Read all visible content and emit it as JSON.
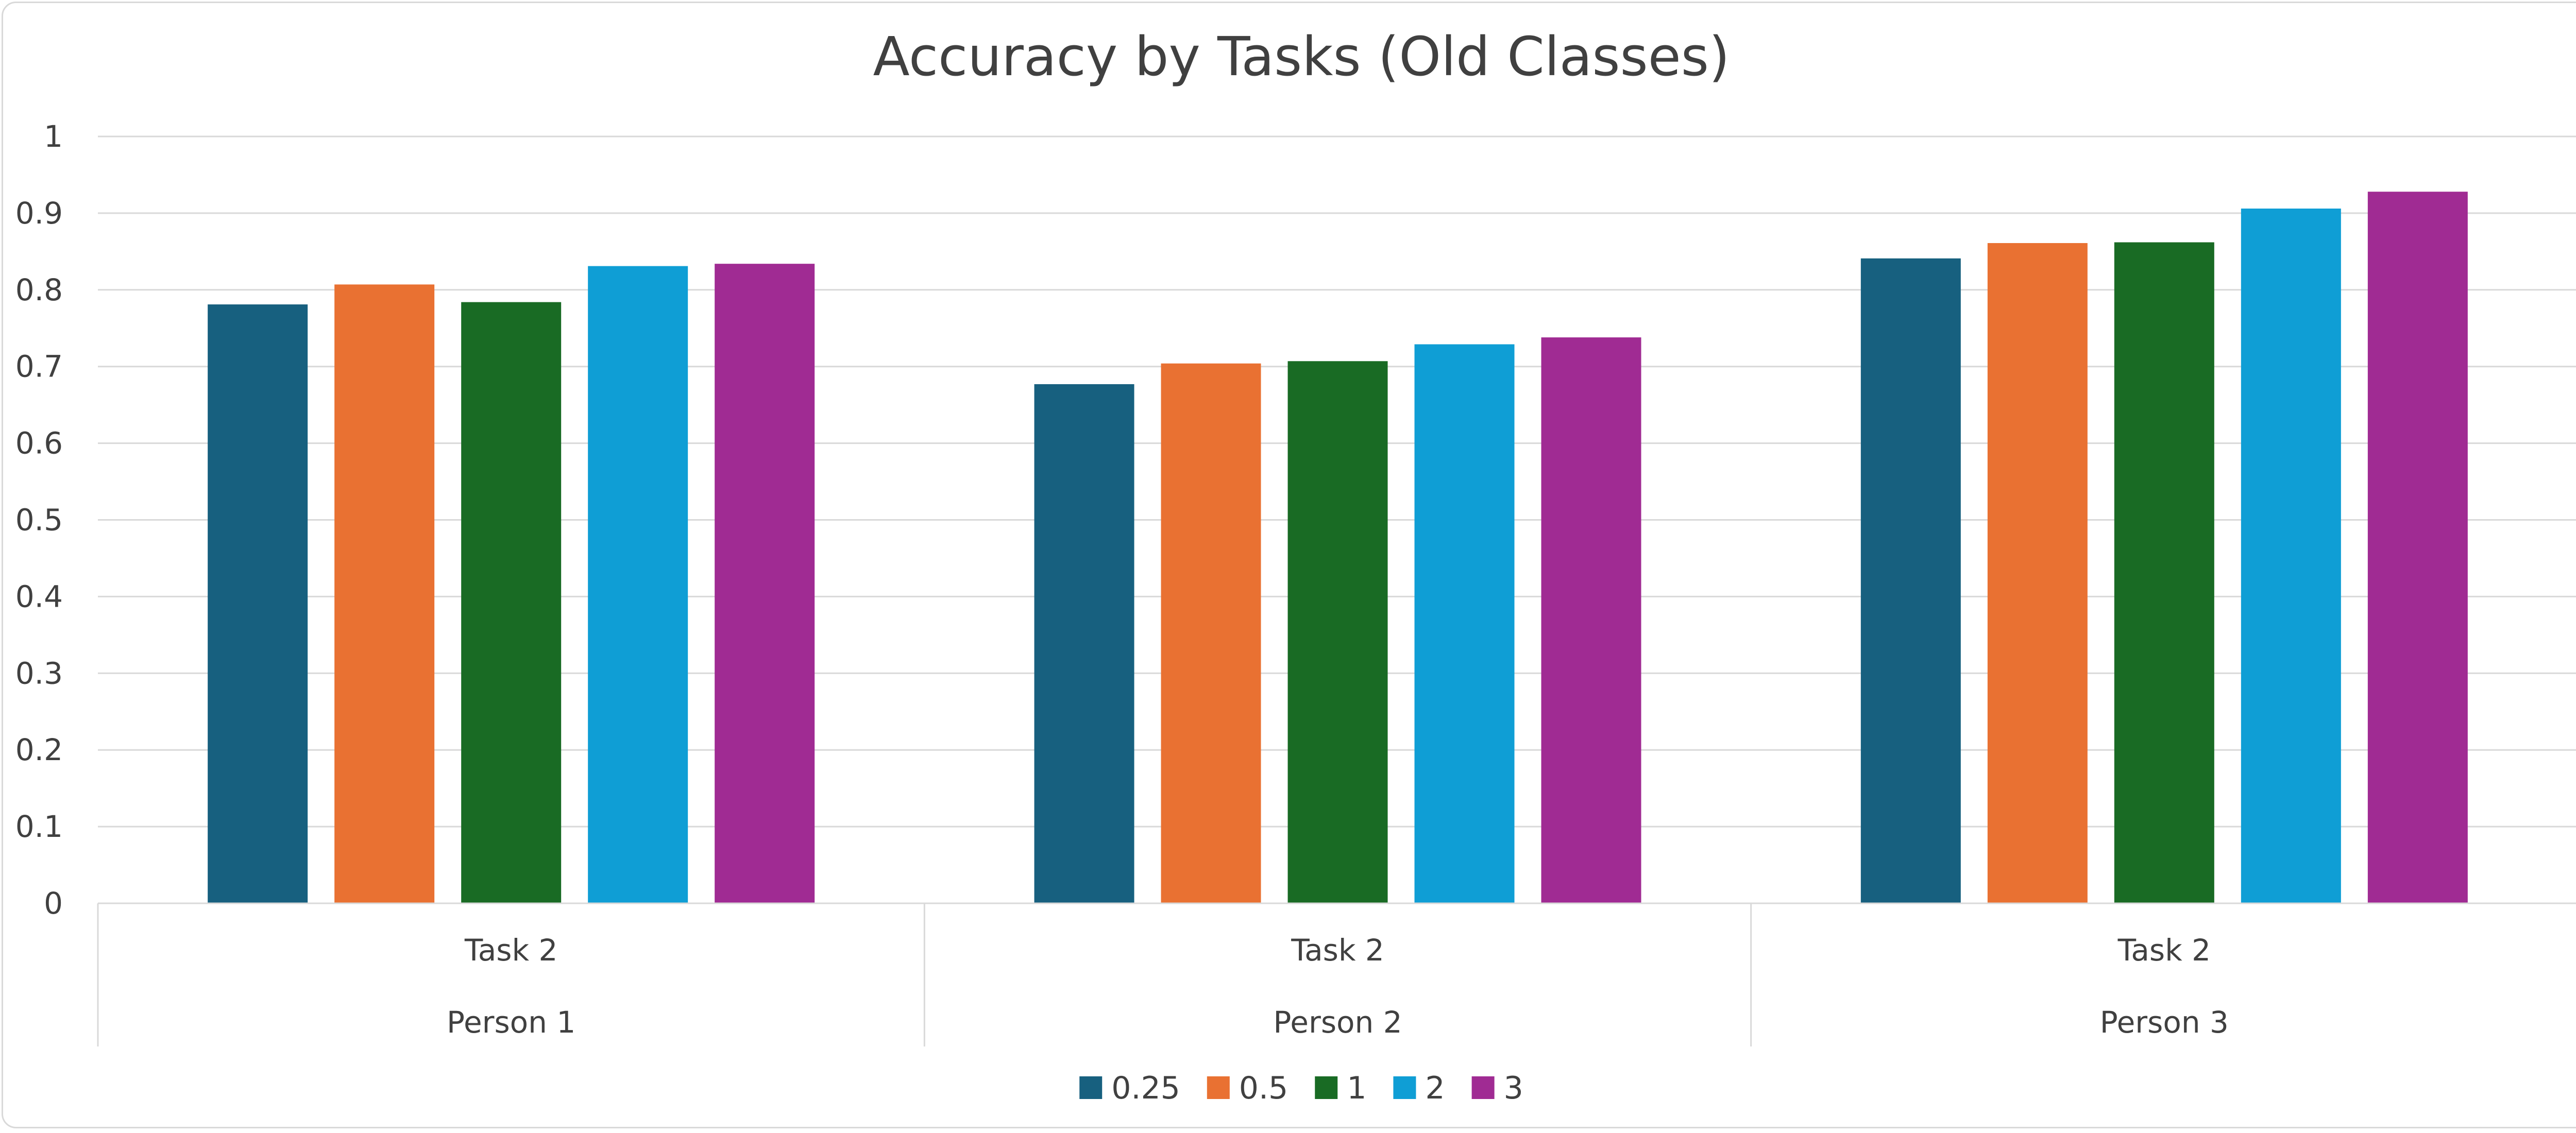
{
  "chart_data": {
    "type": "bar",
    "title": "Accuracy by Tasks (Old Classes)",
    "xlabel": "",
    "ylabel": "",
    "ylim": [
      0,
      1
    ],
    "yticks": [
      "0",
      "0.1",
      "0.2",
      "0.3",
      "0.4",
      "0.5",
      "0.6",
      "0.7",
      "0.8",
      "0.9",
      "1"
    ],
    "grid": true,
    "legend_position": "bottom",
    "categories": [
      {
        "task": "Task 2",
        "group": "Person 1"
      },
      {
        "task": "Task 2",
        "group": "Person 2"
      },
      {
        "task": "Task 2",
        "group": "Person 3"
      }
    ],
    "series": [
      {
        "name": "0.25",
        "color": "#17607f",
        "values": [
          0.781,
          0.677,
          0.841
        ]
      },
      {
        "name": "0.5",
        "color": "#e97132",
        "values": [
          0.807,
          0.704,
          0.861
        ]
      },
      {
        "name": "1",
        "color": "#196b24",
        "values": [
          0.784,
          0.707,
          0.862
        ]
      },
      {
        "name": "2",
        "color": "#0f9ed5",
        "values": [
          0.831,
          0.729,
          0.906
        ]
      },
      {
        "name": "3",
        "color": "#a02b93",
        "values": [
          0.834,
          0.738,
          0.928
        ]
      }
    ]
  }
}
